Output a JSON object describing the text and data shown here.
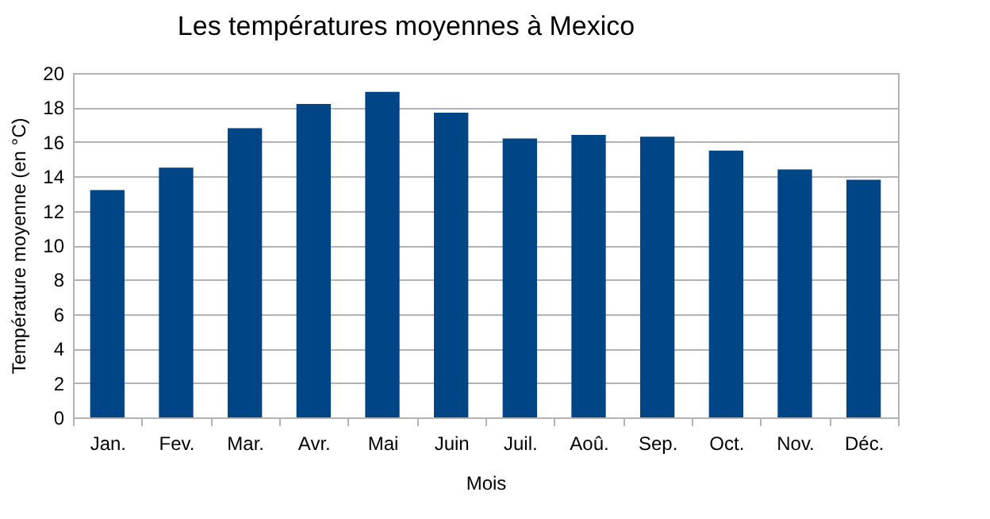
{
  "chart_data": {
    "type": "bar",
    "title": "Les températures moyennes à Mexico",
    "xlabel": "Mois",
    "ylabel": "Température moyenne (en °C)",
    "categories": [
      "Jan.",
      "Fev.",
      "Mar.",
      "Avr.",
      "Mai",
      "Juin",
      "Juil.",
      "Aoû.",
      "Sep.",
      "Oct.",
      "Nov.",
      "Déc."
    ],
    "values": [
      13.2,
      14.5,
      16.8,
      18.2,
      18.9,
      17.7,
      16.2,
      16.4,
      16.3,
      15.5,
      14.4,
      13.8
    ],
    "color": "#004586",
    "ylim": [
      0,
      20
    ],
    "yticks": [
      0,
      2,
      4,
      6,
      8,
      10,
      12,
      14,
      16,
      18,
      20
    ],
    "grid": "y"
  }
}
